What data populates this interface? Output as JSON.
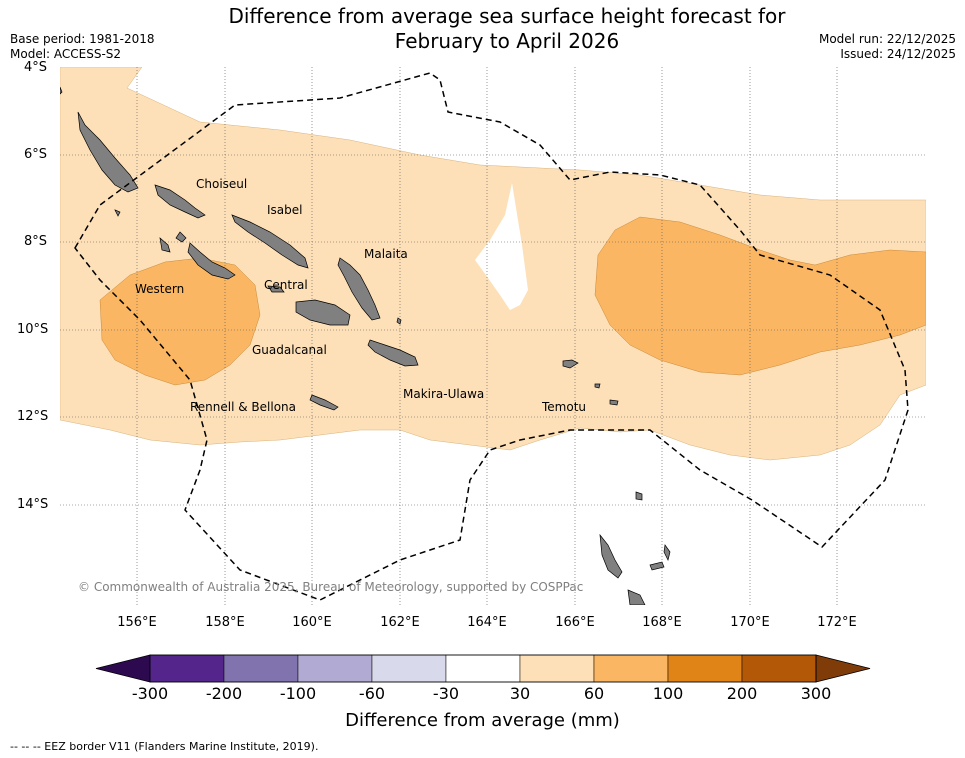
{
  "title": {
    "line1": "Difference from average sea surface height forecast for",
    "line2": "February to April 2026"
  },
  "meta": {
    "base_period": "Base period: 1981-2018",
    "model": "Model: ACCESS-S2",
    "model_run": "Model run: 22/12/2025",
    "issued": "Issued: 24/12/2025"
  },
  "map": {
    "lat_labels": [
      "4°S",
      "6°S",
      "8°S",
      "10°S",
      "12°S",
      "14°S"
    ],
    "lon_labels": [
      "156°E",
      "158°E",
      "160°E",
      "162°E",
      "164°E",
      "166°E",
      "168°E",
      "170°E",
      "172°E"
    ],
    "place_names": [
      "Choiseul",
      "Isabel",
      "Malaita",
      "Western",
      "Central",
      "Guadalcanal",
      "Rennell & Bellona",
      "Makira-Ulawa",
      "Temotu"
    ],
    "copyright": "© Commonwealth of Australia 2025, Bureau of Meteorology, supported by COSPPac",
    "colors": {
      "land": "#808080",
      "anomaly_30_60": "#fde0b8",
      "anomaly_60_100": "#fab662",
      "eez_line": "#000000",
      "grid": "#555555"
    }
  },
  "colorbar": {
    "ticks": [
      "-300",
      "-200",
      "-100",
      "-60",
      "-30",
      "30",
      "60",
      "100",
      "200",
      "300"
    ],
    "colors": [
      "#2d0a4f",
      "#54268b",
      "#8073ae",
      "#b1aad3",
      "#d8d9ea",
      "#ffffff",
      "#fde0b8",
      "#fab662",
      "#e08418",
      "#b35806",
      "#7f3b08"
    ],
    "label": "Difference from average (mm)"
  },
  "footer": "-- -- -- EEZ border V11 (Flanders Marine Institute, 2019)."
}
